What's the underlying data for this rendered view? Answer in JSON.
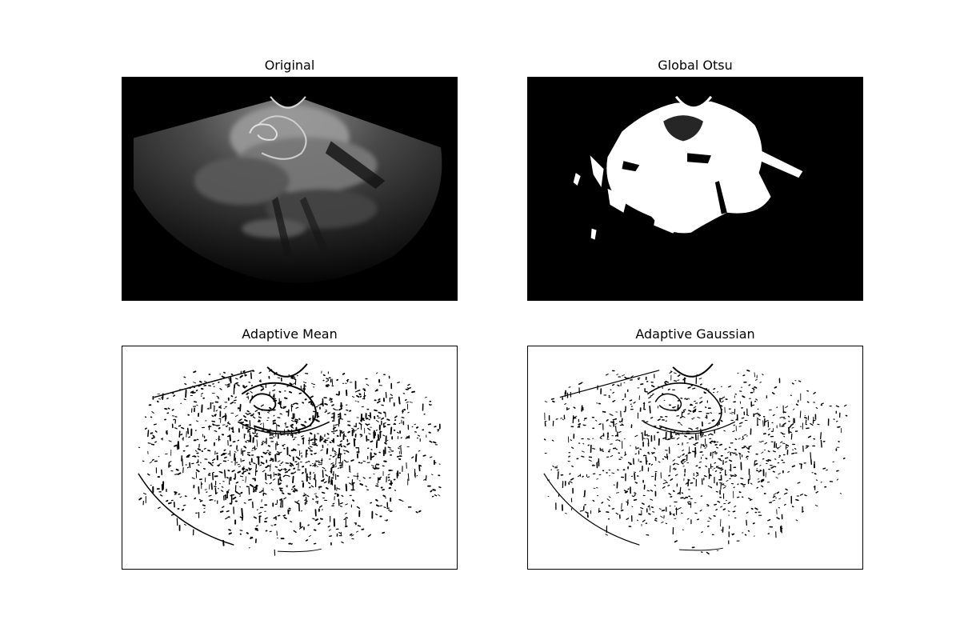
{
  "panels": {
    "original": {
      "title": "Original"
    },
    "global_otsu": {
      "title": "Global Otsu"
    },
    "adaptive_mean": {
      "title": "Adaptive Mean"
    },
    "adaptive_gaussian": {
      "title": "Adaptive Gaussian"
    }
  },
  "colors": {
    "black": "#000000",
    "white": "#ffffff",
    "frame": "#000000"
  }
}
